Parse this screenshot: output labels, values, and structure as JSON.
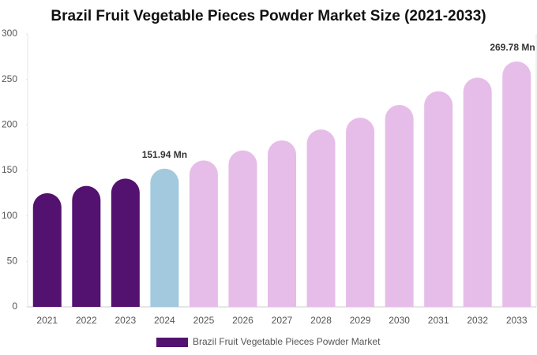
{
  "chart_data": {
    "type": "bar",
    "title": "Brazil Fruit Vegetable Pieces Powder Market Size (2021-2033)",
    "categories": [
      "2021",
      "2022",
      "2023",
      "2024",
      "2025",
      "2026",
      "2027",
      "2028",
      "2029",
      "2030",
      "2031",
      "2032",
      "2033"
    ],
    "series": [
      {
        "name": "Brazil Fruit Vegetable Pieces Powder Market",
        "color": "#541270",
        "values": [
          125,
          133,
          141,
          151.94,
          161,
          172,
          183,
          195,
          208,
          222,
          237,
          252,
          269.78
        ],
        "value_labels": [
          null,
          null,
          null,
          "151.94 Mn",
          null,
          null,
          null,
          null,
          null,
          null,
          null,
          null,
          "269.78 Mn"
        ],
        "colors": [
          "#541270",
          "#541270",
          "#541270",
          "#a3c9de",
          "#e6bde8",
          "#e6bde8",
          "#e6bde8",
          "#e6bde8",
          "#e6bde8",
          "#e6bde8",
          "#e6bde8",
          "#e6bde8",
          "#e6bde8"
        ]
      }
    ],
    "ylim": [
      0,
      300
    ],
    "yticks": [
      0,
      50,
      100,
      150,
      200,
      250,
      300
    ],
    "grid": false,
    "legend": "bottom"
  }
}
